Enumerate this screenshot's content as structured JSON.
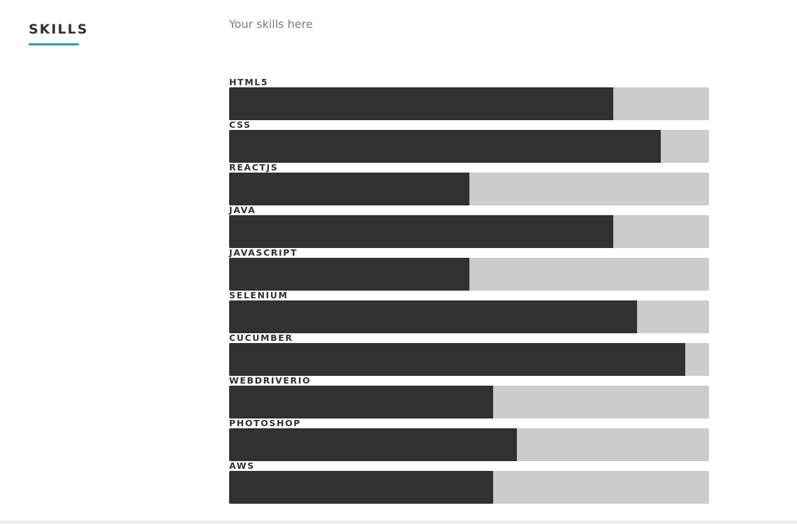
{
  "section": {
    "heading": "SKILLS",
    "intro": "Your skills here",
    "accent_color": "#2a9fb0"
  },
  "skills": [
    {
      "name": "HTML5",
      "level_percent": 80
    },
    {
      "name": "CSS",
      "level_percent": 90
    },
    {
      "name": "REACTJS",
      "level_percent": 50
    },
    {
      "name": "JAVA",
      "level_percent": 80
    },
    {
      "name": "JAVASCRIPT",
      "level_percent": 50
    },
    {
      "name": "SELENIUM",
      "level_percent": 85
    },
    {
      "name": "CUCUMBER",
      "level_percent": 95
    },
    {
      "name": "WEBDRIVERIO",
      "level_percent": 55
    },
    {
      "name": "PHOTOSHOP",
      "level_percent": 60
    },
    {
      "name": "AWS",
      "level_percent": 55
    }
  ],
  "colors": {
    "bar_fill": "#313131",
    "bar_track": "#cccccc"
  }
}
